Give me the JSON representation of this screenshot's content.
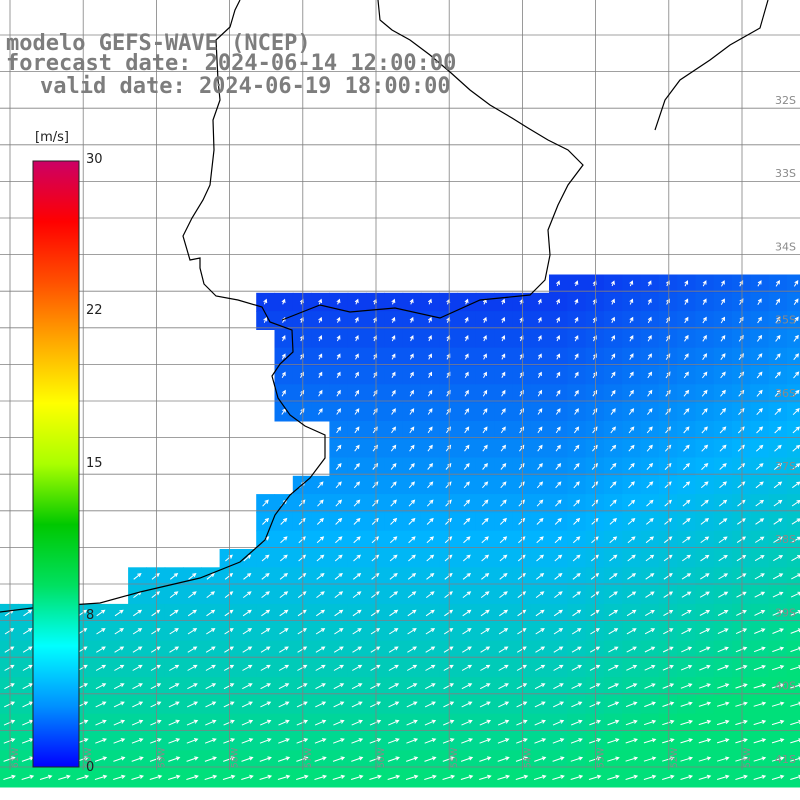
{
  "title": {
    "line1": "modelo GEFS-WAVE (NCEP)",
    "line2": "forecast date: 2024-06-14 12:00:00",
    "line3": "valid date: 2024-06-19 18:00:00"
  },
  "colorbar": {
    "unit": "[m/s]",
    "ticks": [
      "30",
      "22",
      "15",
      "8",
      "0"
    ],
    "colors": [
      "#0000ff",
      "#0090ff",
      "#00ffff",
      "#00e060",
      "#00c800",
      "#aaff00",
      "#ffff00",
      "#ffaa00",
      "#ff5000",
      "#ff0000",
      "#cc0066"
    ]
  },
  "lat_labels": [
    "32S",
    "33S",
    "34S",
    "35S",
    "36S",
    "37S",
    "38S",
    "39S",
    "40S",
    "41S"
  ],
  "lon_labels": [
    "61W",
    "60W",
    "59W",
    "58W",
    "57W",
    "56W",
    "55W",
    "54W",
    "53W",
    "52W",
    "51W"
  ],
  "colors": {
    "land": "#ffffff",
    "grid": "#808080",
    "coast": "#000000",
    "arrow": "#ffffff",
    "weak_wind": "#0a3cf0",
    "moderate_wind": "#00b4ff",
    "strong_wind": "#00e07a"
  }
}
